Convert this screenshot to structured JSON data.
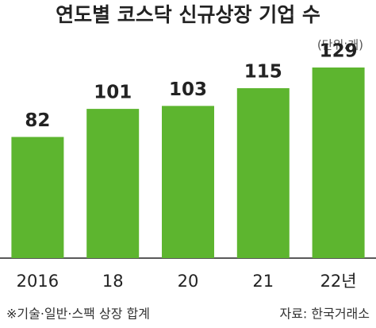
{
  "chart_data": {
    "type": "bar",
    "title": "연도별 코스닥 신규상장 기업 수",
    "subtitle": "(단위:개)",
    "categories": [
      "2016",
      "18",
      "20",
      "21",
      "22년"
    ],
    "values": [
      82,
      101,
      103,
      115,
      129
    ],
    "color": "#5db52f",
    "note": "※기술·일반·스팩 상장 합계",
    "source": "자료: 한국거래소"
  }
}
